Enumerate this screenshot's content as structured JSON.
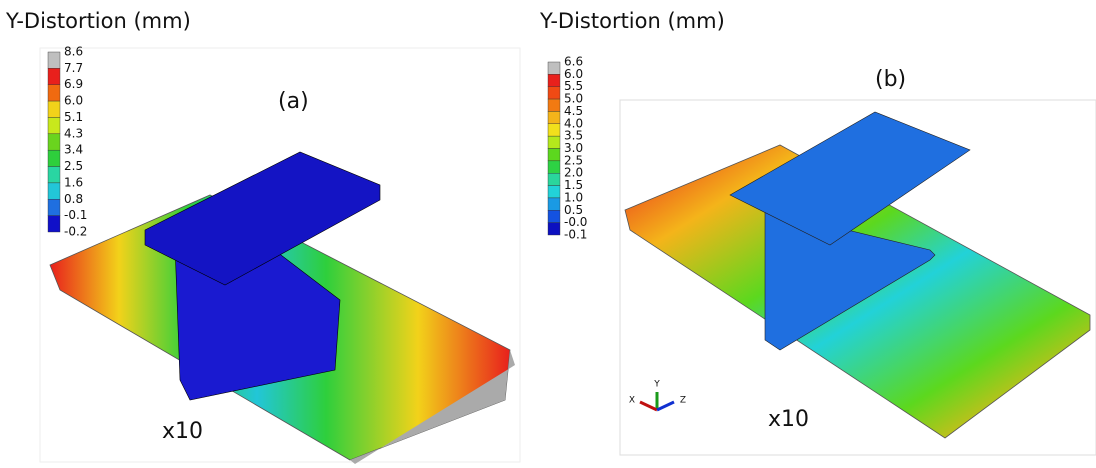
{
  "panels": [
    {
      "title": "Y-Distortion (mm)",
      "label": "(a)",
      "scale_note": "x10",
      "legend_labels": [
        "8.6",
        "7.7",
        "6.9",
        "6.0",
        "5.1",
        "4.3",
        "3.4",
        "2.5",
        "1.6",
        "0.8",
        "-0.1",
        "-0.2"
      ],
      "legend_colors": [
        "#bfbfbf",
        "#e8201c",
        "#f06a10",
        "#f2d21a",
        "#c8e81c",
        "#6ad41e",
        "#2ecf3c",
        "#29d6a2",
        "#22c6d8",
        "#1f6fe0",
        "#1010c8"
      ]
    },
    {
      "title": "Y-Distortion (mm)",
      "label": "(b)",
      "scale_note": "x10",
      "triad": [
        "Y",
        "X",
        "Z"
      ],
      "legend_labels": [
        "6.6",
        "6.0",
        "5.5",
        "5.0",
        "4.5",
        "4.0",
        "3.5",
        "3.0",
        "2.5",
        "2.0",
        "1.5",
        "1.0",
        "0.5",
        "-0.0",
        "-0.1"
      ],
      "legend_colors": [
        "#bfbfbf",
        "#e8201c",
        "#f04a14",
        "#f27a12",
        "#f4b41a",
        "#f2e01c",
        "#b4e81c",
        "#5cd81e",
        "#2ed244",
        "#2ad69c",
        "#22d2d8",
        "#1a9ae4",
        "#1452e0",
        "#0c10c0"
      ]
    }
  ]
}
